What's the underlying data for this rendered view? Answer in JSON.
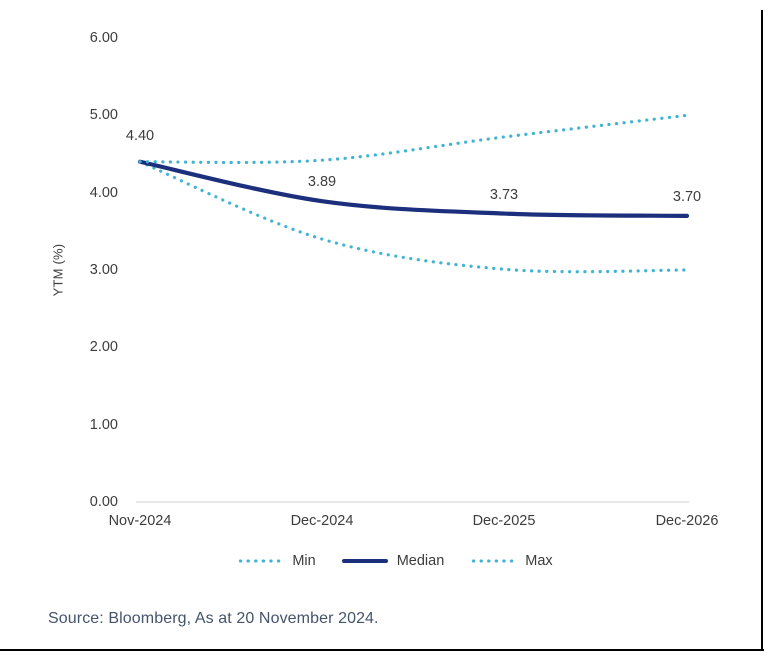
{
  "chart": {
    "source": "Source: Bloomberg, As at 20 November 2024.",
    "colors": {
      "median_navy": "#1b2f7c",
      "minmax_cyan": "#41b3d3",
      "axis_line": "#d9d9d9",
      "text": "#3c3c3c",
      "frame": "#000000"
    },
    "legend": [
      {
        "label": "Min",
        "style": "dotted",
        "color": "#41b3d3"
      },
      {
        "label": "Median",
        "style": "solid",
        "color": "#1b2f7c"
      },
      {
        "label": "Max",
        "style": "dotted",
        "color": "#41b3d3"
      }
    ]
  },
  "chart_data": {
    "type": "line",
    "title": "",
    "xlabel": "",
    "ylabel": "YTM (%)",
    "categories": [
      "Nov-2024",
      "Dec-2024",
      "Dec-2025",
      "Dec-2026"
    ],
    "series": [
      {
        "name": "Min",
        "style": "dotted",
        "color": "#41b3d3",
        "values": [
          4.4,
          3.4,
          3.01,
          3.0
        ]
      },
      {
        "name": "Median",
        "style": "solid",
        "color": "#1b2f7c",
        "values": [
          4.4,
          3.89,
          3.73,
          3.7
        ]
      },
      {
        "name": "Max",
        "style": "dotted",
        "color": "#41b3d3",
        "values": [
          4.4,
          4.42,
          4.72,
          5.0
        ]
      }
    ],
    "data_labels": {
      "series": "Median",
      "texts": [
        "4.40",
        "3.89",
        "3.73",
        "3.70"
      ]
    },
    "ylim": [
      0,
      6
    ],
    "yticks": [
      "6.00",
      "5.00",
      "4.00",
      "3.00",
      "2.00",
      "1.00",
      "0.00"
    ],
    "grid": false,
    "legend_position": "bottom"
  }
}
